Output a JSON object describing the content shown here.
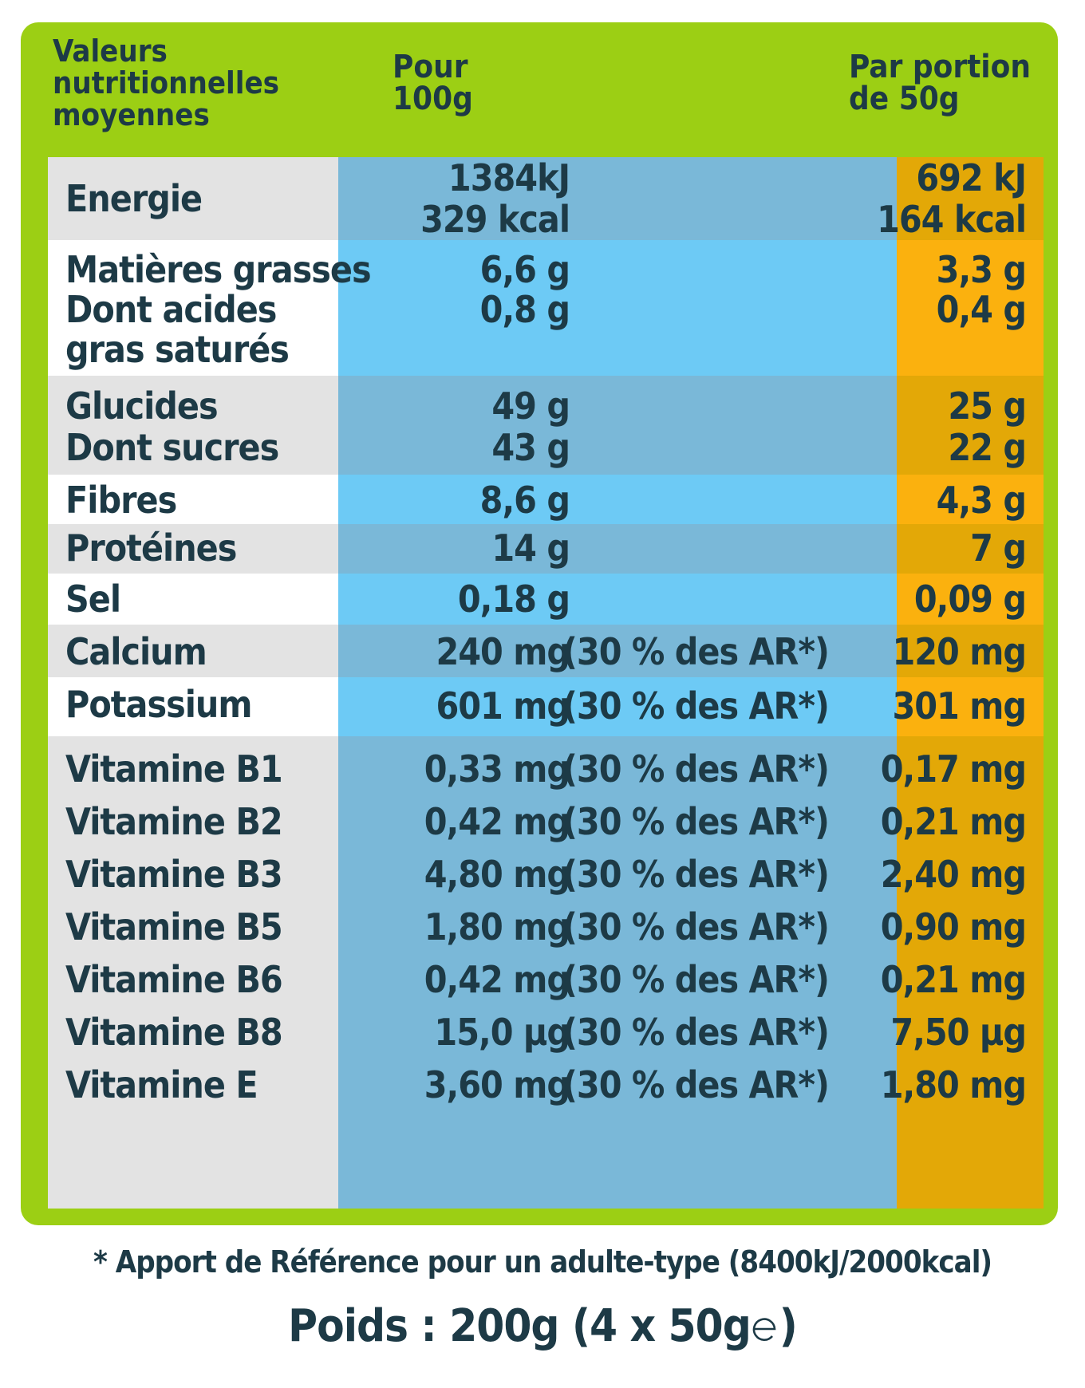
{
  "header": {
    "col_label": "Valeurs\nnutritionnelles\nmoyennes",
    "col_100g": "Pour\n100g",
    "col_portion": "Par portion\nde 50g"
  },
  "rows": [
    {
      "label": "Energie",
      "v100": "1384kJ\n329 kcal",
      "ar": "",
      "v50": "692 kJ\n164 kcal"
    },
    {
      "label": "Matières grasses\nDont acides\ngras saturés",
      "v100": "6,6 g\n0,8 g",
      "ar": "",
      "v50": "3,3 g\n0,4 g"
    },
    {
      "label": "Glucides\nDont sucres",
      "v100": "49 g\n43 g",
      "ar": "",
      "v50": "25 g\n22 g"
    },
    {
      "label": "Fibres",
      "v100": "8,6 g",
      "ar": "",
      "v50": "4,3 g"
    },
    {
      "label": "Protéines",
      "v100": "14 g",
      "ar": "",
      "v50": "7 g"
    },
    {
      "label": "Sel",
      "v100": "0,18 g",
      "ar": "",
      "v50": "0,09 g"
    },
    {
      "label": "Calcium",
      "v100": "240 mg",
      "ar": "(30 % des AR*)",
      "v50": "120 mg"
    },
    {
      "label": "Potassium",
      "v100": "601 mg",
      "ar": "(30 % des AR*)",
      "v50": "301 mg"
    },
    {
      "label": "Vitamine B1\nVitamine B2\nVitamine B3\nVitamine B5\nVitamine B6\nVitamine B8\nVitamine E",
      "v100": "0,33 mg\n0,42 mg\n4,80 mg\n1,80 mg\n0,42 mg\n15,0 µg\n3,60 mg",
      "ar": "(30 % des AR*)\n(30 % des AR*)\n(30 % des AR*)\n(30 % des AR*)\n(30 % des AR*)\n(30 % des AR*)\n(30 % des AR*)",
      "v50": "0,17 mg\n0,21 mg\n2,40 mg\n0,90 mg\n0,21 mg\n7,50 µg\n1,80 mg"
    }
  ],
  "footnote": "* Apport de Référence pour un adulte-type (8400kJ/2000kcal)",
  "weight": {
    "text": "Poids : 200g (4 x 50g",
    "close": ")"
  },
  "colors": {
    "green": "#9ccf14",
    "blue_dark": "#7ab8d8",
    "blue_light": "#6dcaf5",
    "orange_dark": "#e3a807",
    "orange_light": "#fbb10e",
    "text": "#1d3a46"
  }
}
